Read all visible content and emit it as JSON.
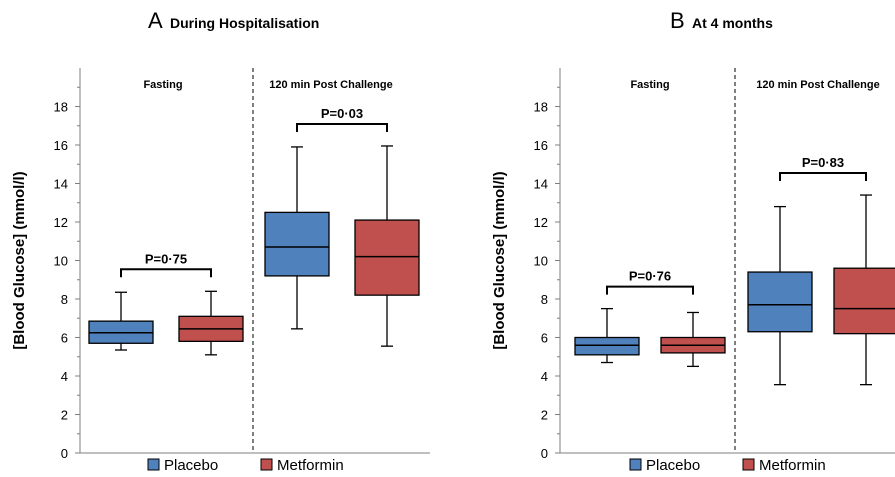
{
  "colors": {
    "placebo": "#4f81bd",
    "metformin": "#c0504d",
    "line": "#000000"
  },
  "chart_data": [
    {
      "type": "box",
      "panel_letter": "A",
      "title": "During Hospitalisation",
      "ylabel": "[Blood Glucose] (mmol/l)",
      "ylim": [
        0,
        20
      ],
      "yticks": [
        0,
        2,
        4,
        6,
        8,
        10,
        12,
        14,
        16,
        18
      ],
      "groups": [
        {
          "label": "Fasting",
          "p_value": "P=0·75",
          "boxes": [
            {
              "series": "Placebo",
              "min": 5.35,
              "q1": 5.7,
              "median": 6.25,
              "q3": 6.85,
              "max": 8.35
            },
            {
              "series": "Metformin",
              "min": 5.1,
              "q1": 5.8,
              "median": 6.45,
              "q3": 7.1,
              "max": 8.4
            }
          ]
        },
        {
          "label": "120 min Post Challenge",
          "p_value": "P=0·03",
          "boxes": [
            {
              "series": "Placebo",
              "min": 6.45,
              "q1": 9.2,
              "median": 10.7,
              "q3": 12.5,
              "max": 15.9
            },
            {
              "series": "Metformin",
              "min": 5.55,
              "q1": 8.2,
              "median": 10.2,
              "q3": 12.1,
              "max": 15.95
            }
          ]
        }
      ],
      "legend": [
        "Placebo",
        "Metformin"
      ]
    },
    {
      "type": "box",
      "panel_letter": "B",
      "title": "At 4 months",
      "ylabel": "[Blood Glucose] (mmol/l)",
      "ylim": [
        0,
        20
      ],
      "yticks": [
        0,
        2,
        4,
        6,
        8,
        10,
        12,
        14,
        16,
        18
      ],
      "groups": [
        {
          "label": "Fasting",
          "p_value": "P=0·76",
          "boxes": [
            {
              "series": "Placebo",
              "min": 4.7,
              "q1": 5.1,
              "median": 5.6,
              "q3": 6.0,
              "max": 7.5
            },
            {
              "series": "Metformin",
              "min": 4.5,
              "q1": 5.2,
              "median": 5.6,
              "q3": 6.0,
              "max": 7.3
            }
          ]
        },
        {
          "label": "120 min Post Challenge",
          "p_value": "P=0·83",
          "boxes": [
            {
              "series": "Placebo",
              "min": 3.55,
              "q1": 6.3,
              "median": 7.7,
              "q3": 9.4,
              "max": 12.8
            },
            {
              "series": "Metformin",
              "min": 3.55,
              "q1": 6.2,
              "median": 7.5,
              "q3": 9.6,
              "max": 13.4
            }
          ]
        }
      ],
      "legend": [
        "Placebo",
        "Metformin"
      ]
    }
  ]
}
